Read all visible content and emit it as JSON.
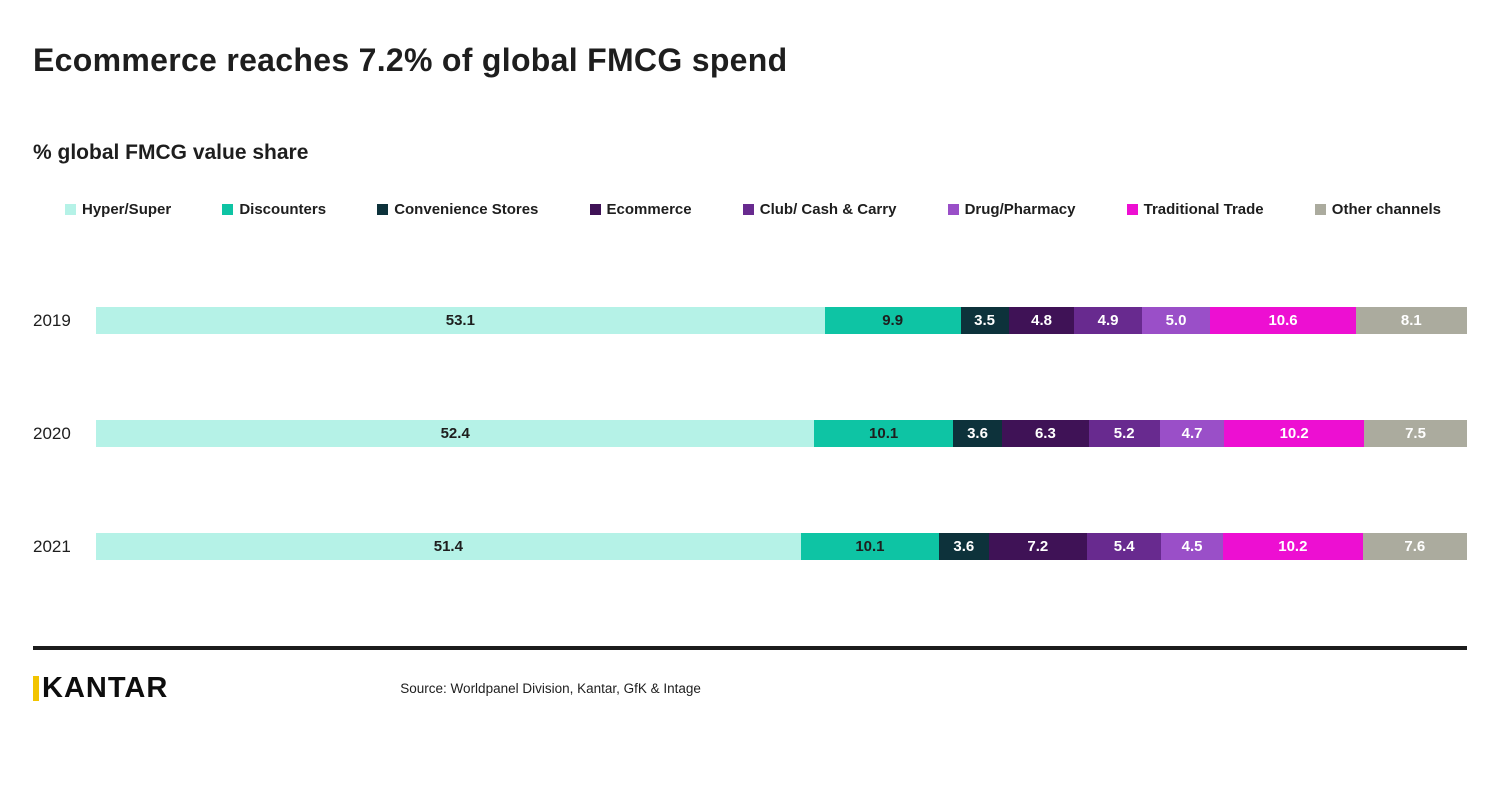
{
  "header": {
    "title": "Ecommerce reaches 7.2% of global FMCG spend",
    "subtitle": "% global FMCG value share"
  },
  "footer": {
    "logo_text": "KANTAR",
    "logo_accent_color": "#f2c400",
    "source": "Source: Worldpanel Division, Kantar, GfK & Intage"
  },
  "chart_data": {
    "type": "bar",
    "stacked": true,
    "orientation": "horizontal",
    "title": "% global FMCG value share",
    "xlabel": "",
    "ylabel": "",
    "xlim": [
      0,
      100
    ],
    "grid": false,
    "legend_position": "top",
    "categories": [
      "2019",
      "2020",
      "2021"
    ],
    "series": [
      {
        "name": "Hyper/Super",
        "color": "#b5f2e7",
        "label_color": "#1e1e1e",
        "values": [
          53.1,
          52.4,
          51.4
        ]
      },
      {
        "name": "Discounters",
        "color": "#0ec4a4",
        "label_color": "#1e1e1e",
        "values": [
          9.9,
          10.1,
          10.1
        ]
      },
      {
        "name": "Convenience Stores",
        "color": "#0d323b",
        "label_color": "#ffffff",
        "values": [
          3.5,
          3.6,
          3.6
        ]
      },
      {
        "name": "Ecommerce",
        "color": "#3f1256",
        "label_color": "#ffffff",
        "values": [
          4.8,
          6.3,
          7.2
        ]
      },
      {
        "name": "Club/ Cash & Carry",
        "color": "#682a8f",
        "label_color": "#ffffff",
        "values": [
          4.9,
          5.2,
          5.4
        ]
      },
      {
        "name": "Drug/Pharmacy",
        "color": "#9a4fc8",
        "label_color": "#ffffff",
        "values": [
          5.0,
          4.7,
          4.5
        ]
      },
      {
        "name": "Traditional Trade",
        "color": "#ed0fd2",
        "label_color": "#ffffff",
        "values": [
          10.6,
          10.2,
          10.2
        ]
      },
      {
        "name": "Other channels",
        "color": "#abab9e",
        "label_color": "#ffffff",
        "values": [
          8.1,
          7.5,
          7.6
        ]
      }
    ]
  }
}
